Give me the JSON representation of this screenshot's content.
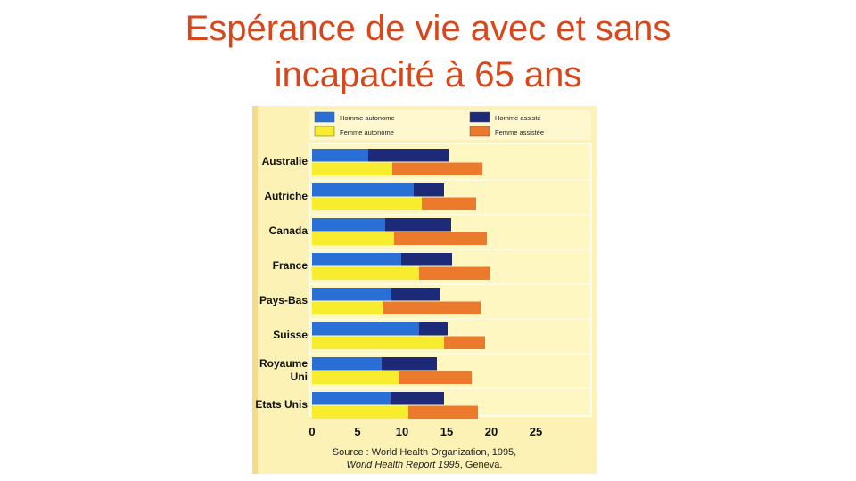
{
  "title": {
    "line1": "Espérance de vie avec et sans",
    "line2": "incapacité à 65 ans"
  },
  "colors": {
    "title": "#d9461a",
    "homme_autonome": "#2a6fd6",
    "homme_assiste": "#1c2a78",
    "femme_autonome": "#f7ec2e",
    "femme_assistee": "#ec7a2c",
    "panel_background": "#fdf2b6"
  },
  "source": {
    "line1": "Source : World Health Organization, 1995,",
    "line2_italic": "World Health Report 1995",
    "line2_rest": ", Geneva."
  },
  "chart_data": {
    "type": "bar",
    "orientation": "horizontal",
    "stacked": true,
    "legend_position": "top",
    "legend": [
      "Homme autonome",
      "Homme assisté",
      "Femme autonome",
      "Femme assistée"
    ],
    "categories": [
      "Australie",
      "Autriche",
      "Canada",
      "France",
      "Pays-Bas",
      "Suisse",
      "Royaume Uni",
      "Etats Unis"
    ],
    "xlim": [
      0,
      25
    ],
    "xticks": [
      0,
      5,
      10,
      15,
      20,
      25
    ],
    "grid": false,
    "groups": [
      {
        "name": "Homme",
        "series": [
          {
            "name": "Homme autonome",
            "values": [
              6.3,
              11.4,
              8.2,
              10.0,
              8.9,
              12.0,
              7.8,
              8.8
            ]
          },
          {
            "name": "Homme assisté",
            "values": [
              9.0,
              3.4,
              7.4,
              5.7,
              5.5,
              3.2,
              6.2,
              6.0
            ]
          }
        ]
      },
      {
        "name": "Femme",
        "series": [
          {
            "name": "Femme autonome",
            "values": [
              9.0,
              12.3,
              9.2,
              12.0,
              7.9,
              14.8,
              9.7,
              10.8
            ]
          },
          {
            "name": "Femme assistée",
            "values": [
              10.1,
              6.1,
              10.4,
              8.0,
              11.0,
              4.6,
              8.2,
              7.8
            ]
          }
        ]
      }
    ]
  }
}
